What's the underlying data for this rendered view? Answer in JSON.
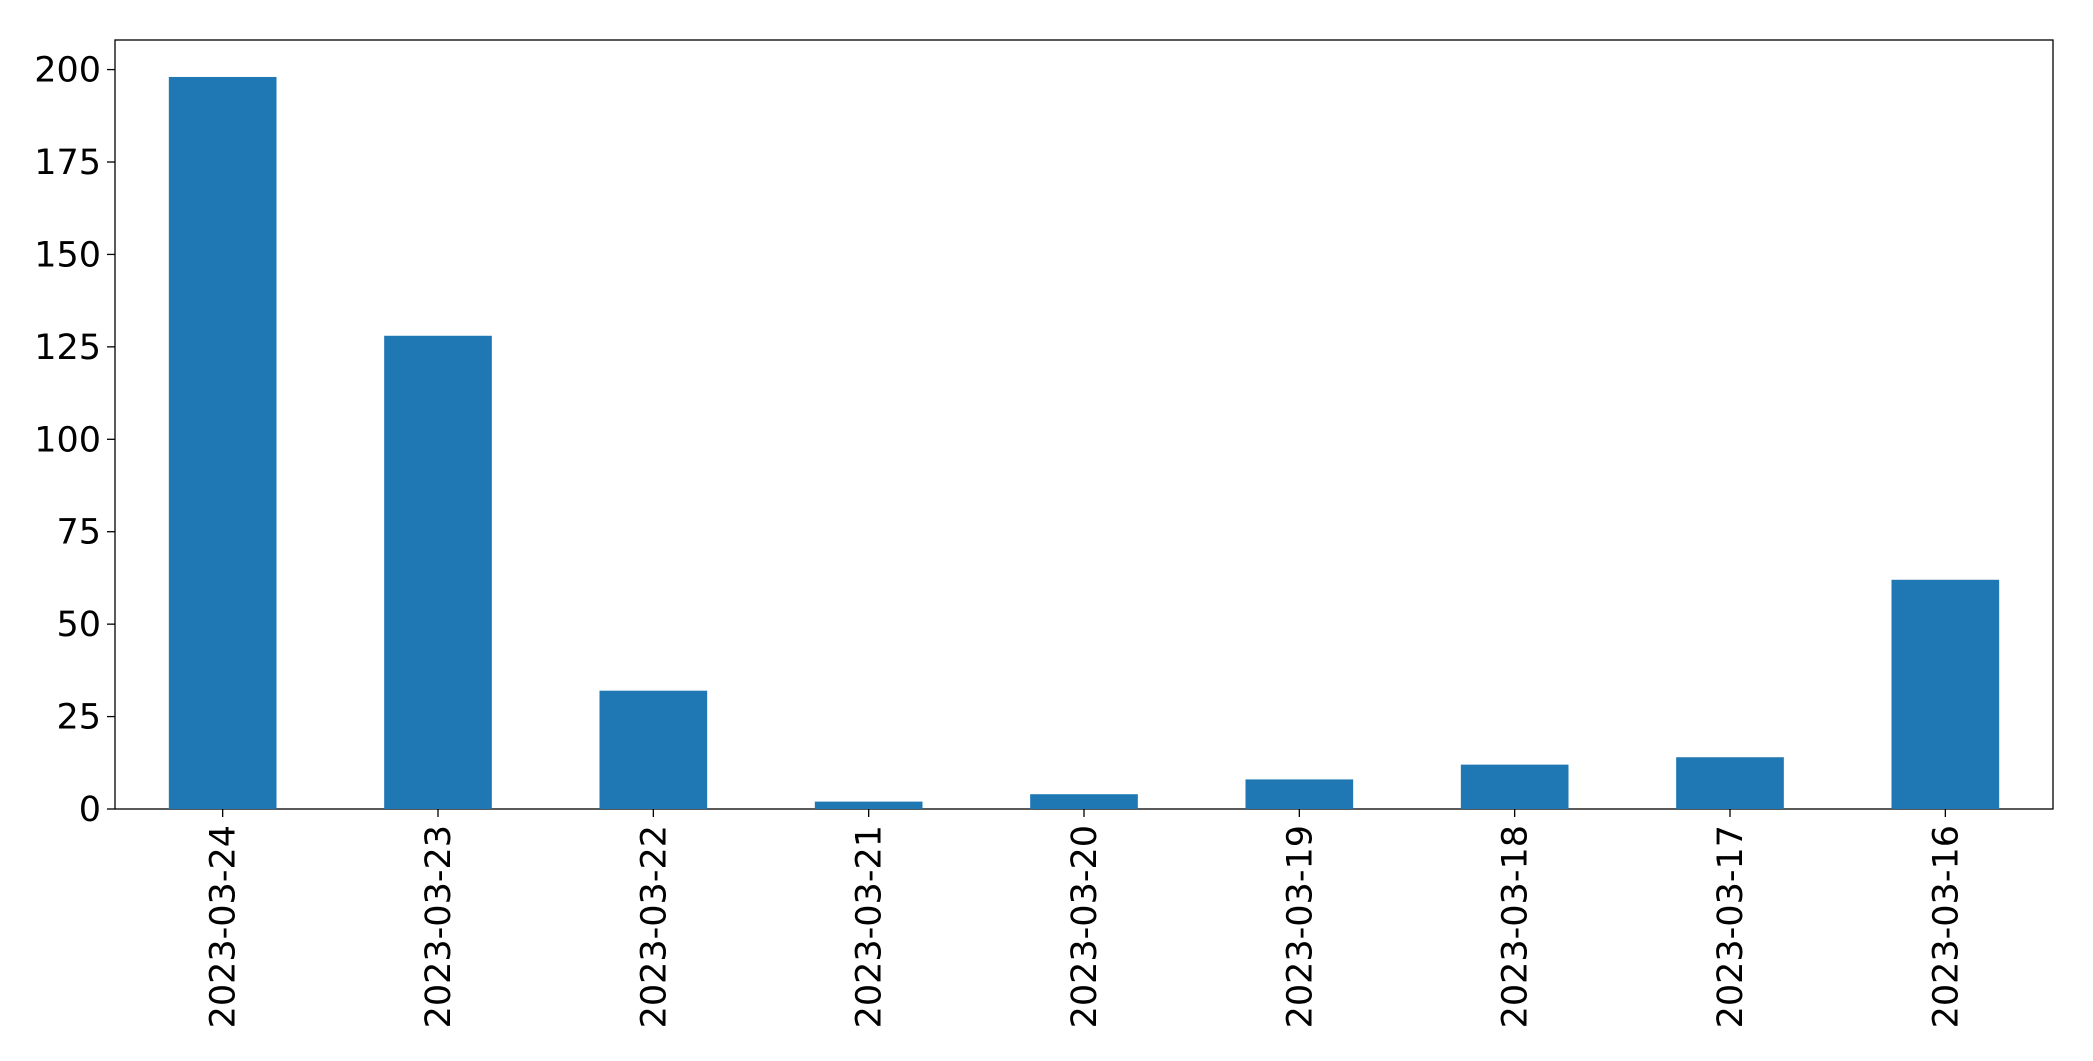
{
  "chart_data": {
    "type": "bar",
    "categories": [
      "2023-03-24",
      "2023-03-23",
      "2023-03-22",
      "2023-03-21",
      "2023-03-20",
      "2023-03-19",
      "2023-03-18",
      "2023-03-17",
      "2023-03-16"
    ],
    "values": [
      198,
      128,
      32,
      2,
      4,
      8,
      12,
      14,
      62
    ],
    "color": "#1f77b4",
    "ylim": [
      0,
      208
    ],
    "yticks": [
      0,
      25,
      50,
      75,
      100,
      125,
      150,
      175,
      200
    ],
    "grid": false
  }
}
